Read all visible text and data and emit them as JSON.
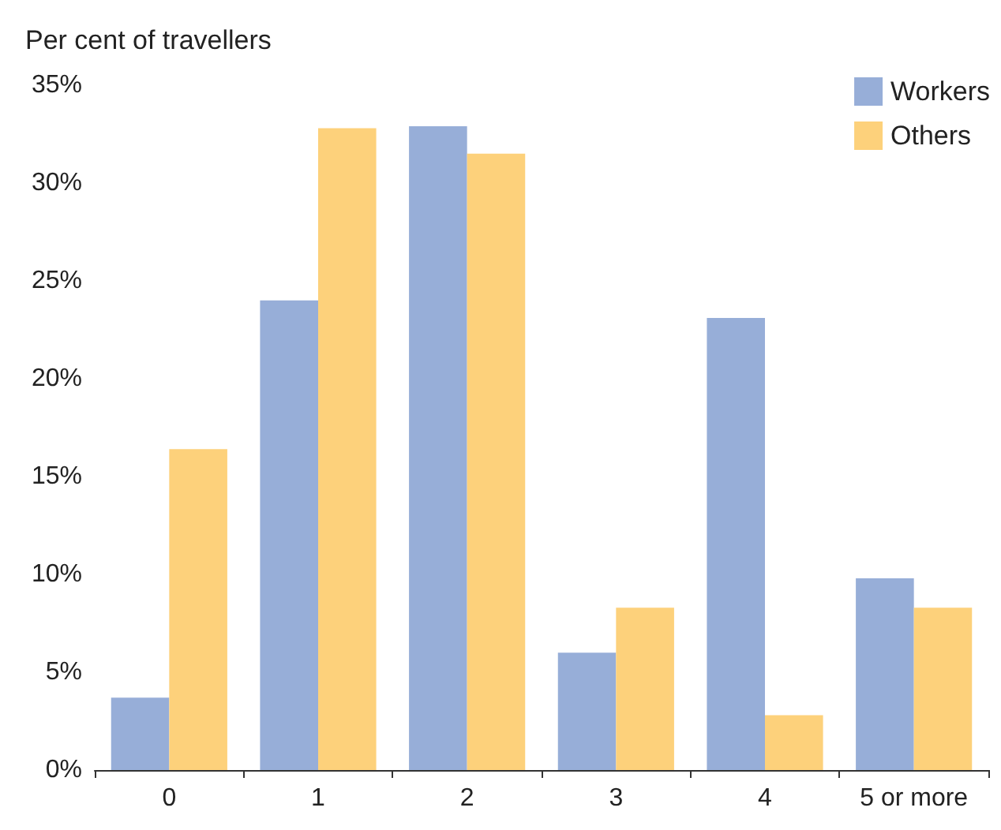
{
  "chart_data": {
    "type": "bar",
    "ylabel": "Per cent of travellers",
    "categories": [
      "0",
      "1",
      "2",
      "3",
      "4",
      "5 or more"
    ],
    "series": [
      {
        "name": "Workers",
        "color": "#97aed8",
        "values": [
          3.7,
          24.0,
          32.9,
          6.0,
          23.1,
          9.8
        ]
      },
      {
        "name": "Others",
        "color": "#fdd17b",
        "values": [
          16.4,
          32.8,
          31.5,
          8.3,
          2.8,
          8.3
        ]
      }
    ],
    "ylim": [
      0,
      35
    ],
    "yticks": [
      {
        "value": 0,
        "label": "0%"
      },
      {
        "value": 5,
        "label": "5%"
      },
      {
        "value": 10,
        "label": "10%"
      },
      {
        "value": 15,
        "label": "15%"
      },
      {
        "value": 20,
        "label": "20%"
      },
      {
        "value": 25,
        "label": "25%"
      },
      {
        "value": 30,
        "label": "30%"
      },
      {
        "value": 35,
        "label": "35%"
      }
    ],
    "grid": false,
    "legend": "top right"
  }
}
